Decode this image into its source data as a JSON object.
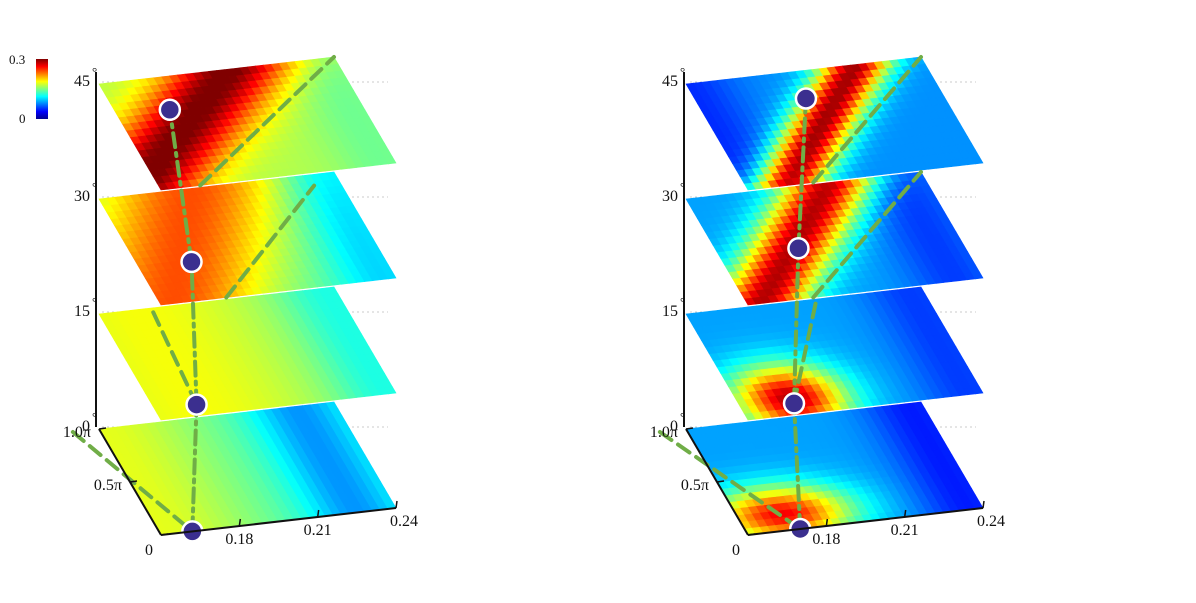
{
  "chart_data": [
    {
      "type": "heatmap",
      "panel": "left",
      "z_tick_labels": [
        "0",
        "15",
        "30",
        "45"
      ],
      "z_unit_symbol": "°",
      "x_tick_labels": [
        "0.18",
        "0.21",
        "0.24"
      ],
      "y_tick_labels": [
        "0",
        "0.5π",
        "1.0π"
      ],
      "colorbar": {
        "labels": [
          "0.3",
          "0"
        ],
        "range": [
          0,
          0.3
        ]
      },
      "layers": [
        {
          "z": 0,
          "optimum": {
            "x": 0.162,
            "y": 0
          },
          "field": {
            "base": 0.13,
            "bump": 0.05,
            "hot_x": 0.15,
            "width": 0.04,
            "cool_x": 0.225,
            "cool": 0.05
          },
          "ridge": [
            [
              0.14,
              1.0
            ],
            [
              0.162,
              0.0
            ]
          ]
        },
        {
          "z": 15,
          "optimum": {
            "x": 0.166,
            "y": 0.1
          },
          "field": {
            "base": 0.145,
            "bump": 0.04,
            "hot_x": 0.166,
            "width": 0.05,
            "cool_x": 0.235,
            "cool": 0.03
          },
          "ridge": [
            [
              0.166,
              0.1
            ],
            [
              0.17,
              1.0
            ]
          ]
        },
        {
          "z": 30,
          "optimum": {
            "x": 0.17,
            "y": 0.35
          },
          "field": {
            "base": 0.14,
            "bump": 0.1,
            "hot_x": 0.17,
            "width": 0.035,
            "tilt": 0.03,
            "cool_x": 0.235,
            "cool": 0.04
          },
          "ridge": [
            [
              0.175,
              0.0
            ],
            [
              0.23,
              0.9
            ]
          ]
        },
        {
          "z": 45,
          "optimum": {
            "x": 0.17,
            "y": 0.7
          },
          "field": {
            "base": 0.165,
            "bump": 0.14,
            "hot_x": 0.17,
            "width": 0.025,
            "tilt": 0.06,
            "cool_x": 0.235,
            "cool": 0.02
          },
          "ridge": [
            [
              0.165,
              0.0
            ],
            [
              0.24,
              1.0
            ]
          ]
        }
      ],
      "colors": {
        "optimum_marker": "#3b2f8f",
        "marker_outline": "#ffffff",
        "ridge_line": "#70ad47"
      }
    },
    {
      "type": "heatmap",
      "panel": "right",
      "z_tick_labels": [
        "0",
        "15",
        "30",
        "45"
      ],
      "z_unit_symbol": "°",
      "x_tick_labels": [
        "0.18",
        "0.21",
        "0.24"
      ],
      "y_tick_labels": [
        "0",
        "0.5π",
        "1.0π"
      ],
      "layers": [
        {
          "z": 0,
          "optimum": {
            "x": 0.17,
            "y": 0
          },
          "field": {
            "base": 0.085,
            "bump": 0.18,
            "hot_x": 0.167,
            "hot_y": 0.15,
            "width": 0.025,
            "width_y": 0.25,
            "cool_x": 0.235,
            "cool": 0.04
          },
          "ridge": [
            [
              0.14,
              1.0
            ],
            [
              0.17,
              0.0
            ]
          ]
        },
        {
          "z": 15,
          "optimum": {
            "x": 0.17,
            "y": 0.1
          },
          "field": {
            "base": 0.085,
            "bump": 0.2,
            "hot_x": 0.17,
            "hot_y": 0.15,
            "width": 0.02,
            "width_y": 0.3,
            "cool_x": 0.235,
            "cool": 0.03
          },
          "ridge": [
            [
              0.17,
              0.1
            ],
            [
              0.2,
              1.0
            ]
          ]
        },
        {
          "z": 30,
          "optimum": {
            "x": 0.18,
            "y": 0.45
          },
          "field": {
            "base": 0.085,
            "bump": 0.2,
            "hot_x": 0.18,
            "width": 0.018,
            "tilt": 0.05,
            "cool_x": 0.23,
            "cool": 0.03
          },
          "ridge": [
            [
              0.175,
              0.0
            ],
            [
              0.24,
              1.0
            ]
          ]
        },
        {
          "z": 45,
          "optimum": {
            "x": 0.19,
            "y": 0.75
          },
          "field": {
            "base": 0.08,
            "bump": 0.21,
            "hot_x": 0.19,
            "width": 0.014,
            "tilt": 0.05,
            "cool_x": 0.15,
            "cool": 0.03
          },
          "ridge": [
            [
              0.175,
              0.0
            ],
            [
              0.24,
              1.0
            ]
          ]
        }
      ],
      "colors": {
        "optimum_marker": "#3b2f8f",
        "marker_outline": "#ffffff",
        "ridge_line": "#70ad47"
      }
    }
  ]
}
